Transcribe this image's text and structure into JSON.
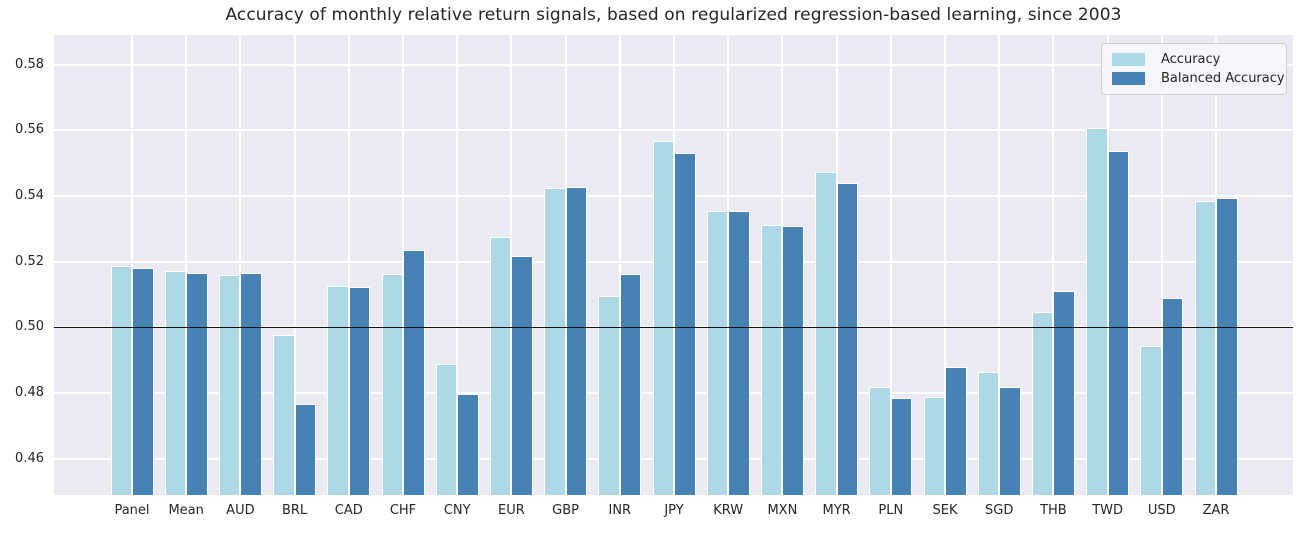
{
  "chart_data": {
    "type": "bar",
    "title": "Accuracy of monthly relative return signals, based on regularized regression-based learning, since 2003",
    "categories": [
      "Panel",
      "Mean",
      "AUD",
      "BRL",
      "CAD",
      "CHF",
      "CNY",
      "EUR",
      "GBP",
      "INR",
      "JPY",
      "KRW",
      "MXN",
      "MYR",
      "PLN",
      "SEK",
      "SGD",
      "THB",
      "TWD",
      "USD",
      "ZAR"
    ],
    "series": [
      {
        "name": "Accuracy",
        "color": "#ADD8E6",
        "values": [
          0.5187,
          0.5173,
          0.5161,
          0.4978,
          0.5127,
          0.5164,
          0.4889,
          0.5274,
          0.5423,
          0.5096,
          0.5567,
          0.5353,
          0.5313,
          0.5473,
          0.4819,
          0.4787,
          0.4865,
          0.5046,
          0.5606,
          0.4944,
          0.5386
        ]
      },
      {
        "name": "Balanced Accuracy",
        "color": "#4682B4",
        "values": [
          0.518,
          0.5165,
          0.5167,
          0.4767,
          0.5124,
          0.5235,
          0.4796,
          0.5217,
          0.5427,
          0.5162,
          0.5532,
          0.5353,
          0.5309,
          0.5439,
          0.4784,
          0.4881,
          0.4818,
          0.5112,
          0.5538,
          0.5089,
          0.5393
        ]
      }
    ],
    "yticks": [
      0.46,
      0.48,
      0.5,
      0.52,
      0.54,
      0.56,
      0.58
    ],
    "ytick_labels": [
      "0.46",
      "0.48",
      "0.50",
      "0.52",
      "0.54",
      "0.56",
      "0.58"
    ],
    "ylim": [
      0.449,
      0.589
    ],
    "baseline": 0.5,
    "grid": true,
    "legend_position": "upper right",
    "plot_bg": "#EAEAF2",
    "grid_color": "#FFFFFF",
    "baseline_color": "#111111",
    "text_color": "#262626"
  }
}
